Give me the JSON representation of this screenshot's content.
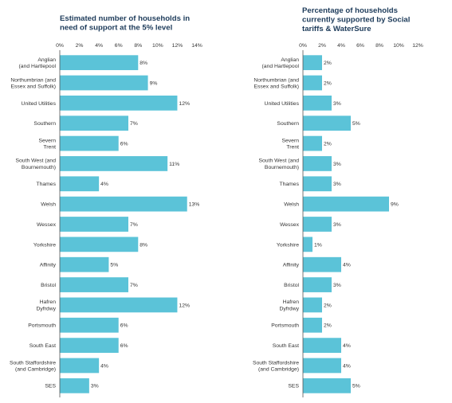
{
  "colors": {
    "bar": "#5bc3d8",
    "axis": "#555555",
    "title": "#1d3b5a",
    "text": "#333333"
  },
  "chart_data": [
    {
      "type": "bar",
      "orientation": "horizontal",
      "title_lines": [
        "Estimated number of households in",
        "need of support at the 5% level"
      ],
      "xlabel": "",
      "ylabel": "",
      "xlim": [
        0,
        14
      ],
      "grid": false,
      "legend": "none",
      "x_ticks": [
        "0%",
        "2%",
        "4%",
        "6%",
        "8%",
        "10%",
        "12%",
        "14%"
      ],
      "categories": [
        [
          "Anglian",
          "(and Hartlepool"
        ],
        [
          "Northumbrian (and",
          "Essex and Suffolk)"
        ],
        [
          "United Utilities"
        ],
        [
          "Southern"
        ],
        [
          "Severn",
          "Trent"
        ],
        [
          "South West (and",
          "Bournemouth)"
        ],
        [
          "Thames"
        ],
        [
          "Welsh"
        ],
        [
          "Wessex"
        ],
        [
          "Yorkshire"
        ],
        [
          "Affinity"
        ],
        [
          "Bristol"
        ],
        [
          "Hafren",
          "Dyfrdwy"
        ],
        [
          "Portsmouth"
        ],
        [
          "South East"
        ],
        [
          "South Staffordshire",
          "(and Cambridge)"
        ],
        [
          "SES"
        ]
      ],
      "values": [
        8,
        9,
        12,
        7,
        6,
        11,
        4,
        13,
        7,
        8,
        5,
        7,
        12,
        6,
        6,
        4,
        3
      ],
      "value_labels": [
        "8%",
        "9%",
        "12%",
        "7%",
        "6%",
        "11%",
        "4%",
        "13%",
        "7%",
        "8%",
        "5%",
        "7%",
        "12%",
        "6%",
        "6%",
        "4%",
        "3%"
      ]
    },
    {
      "type": "bar",
      "orientation": "horizontal",
      "title_lines": [
        "Percentage of households",
        "currently supported by Social",
        "tariffs & WaterSure"
      ],
      "xlabel": "",
      "ylabel": "",
      "xlim": [
        0,
        12
      ],
      "grid": false,
      "legend": "none",
      "x_ticks": [
        "0%",
        "2%",
        "4%",
        "6%",
        "8%",
        "10%",
        "12%"
      ],
      "categories": [
        [
          "Anglian",
          "(and Hartlepool"
        ],
        [
          "Northumbrian (and",
          "Essex and Suffolk)"
        ],
        [
          "United Utilities"
        ],
        [
          "Southern"
        ],
        [
          "Severn",
          "Trent"
        ],
        [
          "South West (and",
          "Bournemouth)"
        ],
        [
          "Thames"
        ],
        [
          "Welsh"
        ],
        [
          "Wessex"
        ],
        [
          "Yorkshire"
        ],
        [
          "Affinity"
        ],
        [
          "Bristol"
        ],
        [
          "Hafren",
          "Dyfrdwy"
        ],
        [
          "Portsmouth"
        ],
        [
          "South East"
        ],
        [
          "South Staffordshire",
          "(and Cambridge)"
        ],
        [
          "SES"
        ]
      ],
      "values": [
        2,
        2,
        3,
        5,
        2,
        3,
        3,
        9,
        3,
        1,
        4,
        3,
        2,
        2,
        4,
        4,
        5
      ],
      "value_labels": [
        "2%",
        "2%",
        "3%",
        "5%",
        "2%",
        "3%",
        "3%",
        "9%",
        "3%",
        "1%",
        "4%",
        "3%",
        "2%",
        "2%",
        "4%",
        "4%",
        "5%"
      ]
    }
  ]
}
